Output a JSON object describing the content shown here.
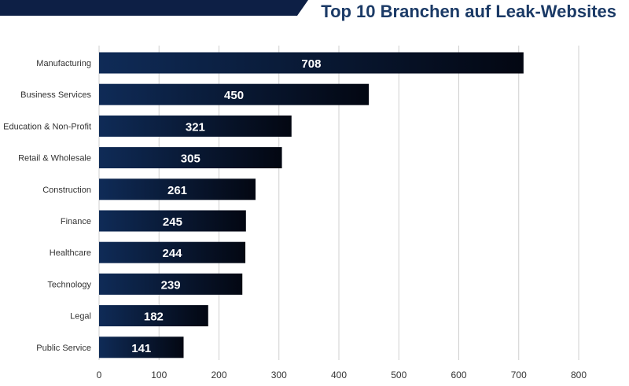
{
  "chart_data": {
    "type": "bar",
    "orientation": "horizontal",
    "title": "Top 10 Branchen auf Leak-Websites",
    "categories": [
      "Manufacturing",
      "Business Services",
      "Education & Non-Profit",
      "Retail & Wholesale",
      "Construction",
      "Finance",
      "Healthcare",
      "Technology",
      "Legal",
      "Public Service"
    ],
    "values": [
      708,
      450,
      321,
      305,
      261,
      245,
      244,
      239,
      182,
      141
    ],
    "xlim": [
      0,
      800
    ],
    "ticks": [
      0,
      100,
      200,
      300,
      400,
      500,
      600,
      700,
      800
    ],
    "grid": true,
    "xlabel": "",
    "ylabel": ""
  },
  "colors": {
    "title": "#1b3a66",
    "banner": "#0d1f45",
    "bar_start": "#0f2b57",
    "bar_end": "#030712",
    "grid": "#cfcfcf",
    "label": "#333333",
    "bar_text": "#ffffff"
  }
}
